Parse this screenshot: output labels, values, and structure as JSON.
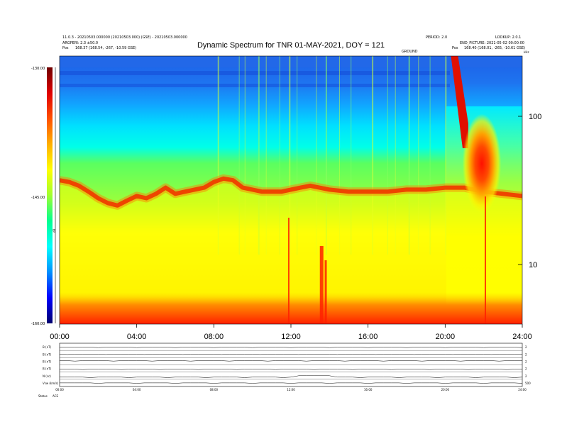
{
  "header": {
    "title": "Dynamic Spectrum for TNR 01-MAY-2021, DOY = 121",
    "left_line1": "11.0.3 - 20210503.000000 (20210503.000) (GSE) - 20210503.000000",
    "left_line2": "ARGPERI: 2.3 ±50.0",
    "left_line3_label": "Pos",
    "left_line3_value": "168.37 (168.54, -267, -10.59 GSE)",
    "right_line1_a": "PERIOD: 2.0",
    "right_line1_b": "LOOKUP: 2.0.1",
    "right_line2": "END_PICTURE: 2021-05-02 00:00:00",
    "right_line3_label": "Pos",
    "right_line3_value": "168.40 (168.01, -265, -10.61 GSE)",
    "small_mid": "GROUND"
  },
  "chart_data": [
    {
      "type": "heatmap",
      "title": "Dynamic Spectrum for TNR 01-MAY-2021, DOY = 121",
      "x_unit": "UT (hh:mm)",
      "xlim": [
        "00:00",
        "24:00"
      ],
      "xticks": [
        "00:00",
        "04:00",
        "08:00",
        "12:00",
        "16:00",
        "20:00",
        "24:00"
      ],
      "ylabel_right": "kHz",
      "y_scale": "log",
      "yticks_right": [
        "100",
        "10"
      ],
      "colorbar": {
        "label": "dB",
        "ticks": [
          "-130.00",
          "-145.00",
          "-160.00"
        ],
        "range": [
          -160,
          -130
        ],
        "colors": [
          "#00006e",
          "#0000ff",
          "#0090ff",
          "#00ffff",
          "#00ff90",
          "#a0ff30",
          "#ffff00",
          "#ffb000",
          "#ff5000",
          "#e00000",
          "#700000"
        ]
      },
      "background_band_start_hour": 20.3,
      "background_band_end_hour": 24,
      "events": [
        {
          "type": "type-iii-drift",
          "start_hour": 20.3,
          "end_hour": 21.2
        },
        {
          "type": "bright-patch",
          "start_hour": 20.9,
          "end_hour": 22.9
        }
      ],
      "plasma_line_hours": [
        0,
        0.5,
        1,
        1.5,
        2,
        2.5,
        3,
        3.5,
        4,
        4.5,
        5,
        5.5,
        6,
        6.5,
        7,
        7.5,
        8,
        8.5,
        9,
        9.5,
        10,
        10.5,
        11,
        11.5,
        12,
        12.5,
        13,
        14,
        15,
        16,
        17,
        18,
        19,
        20,
        21,
        22,
        23,
        24
      ],
      "plasma_line_khz": [
        37,
        36,
        34,
        31,
        28,
        26,
        25,
        27,
        29,
        28,
        30,
        33,
        30,
        31,
        32,
        33,
        36,
        38,
        37,
        33,
        32,
        31,
        31,
        31,
        32,
        33,
        34,
        32,
        31,
        31,
        31,
        32,
        32,
        33,
        33,
        31,
        30,
        29
      ]
    },
    {
      "type": "line",
      "title": "",
      "panels": [
        {
          "label": "B (nT)",
          "right_tick": "2"
        },
        {
          "label": "B (nT)",
          "right_tick": "2"
        },
        {
          "label": "B (nT)",
          "right_tick": "2"
        },
        {
          "label": "B (nT)",
          "right_tick": "2"
        },
        {
          "label": "N (cc)",
          "right_tick": "2"
        },
        {
          "label": "Vsw (km/s)",
          "right_tick": "500"
        }
      ],
      "xticks": [
        "00:00",
        "04:00",
        "08:00",
        "12:00",
        "16:00",
        "20:00",
        "24:00"
      ],
      "footer_left": "Status",
      "footer_right": "ACE"
    }
  ]
}
